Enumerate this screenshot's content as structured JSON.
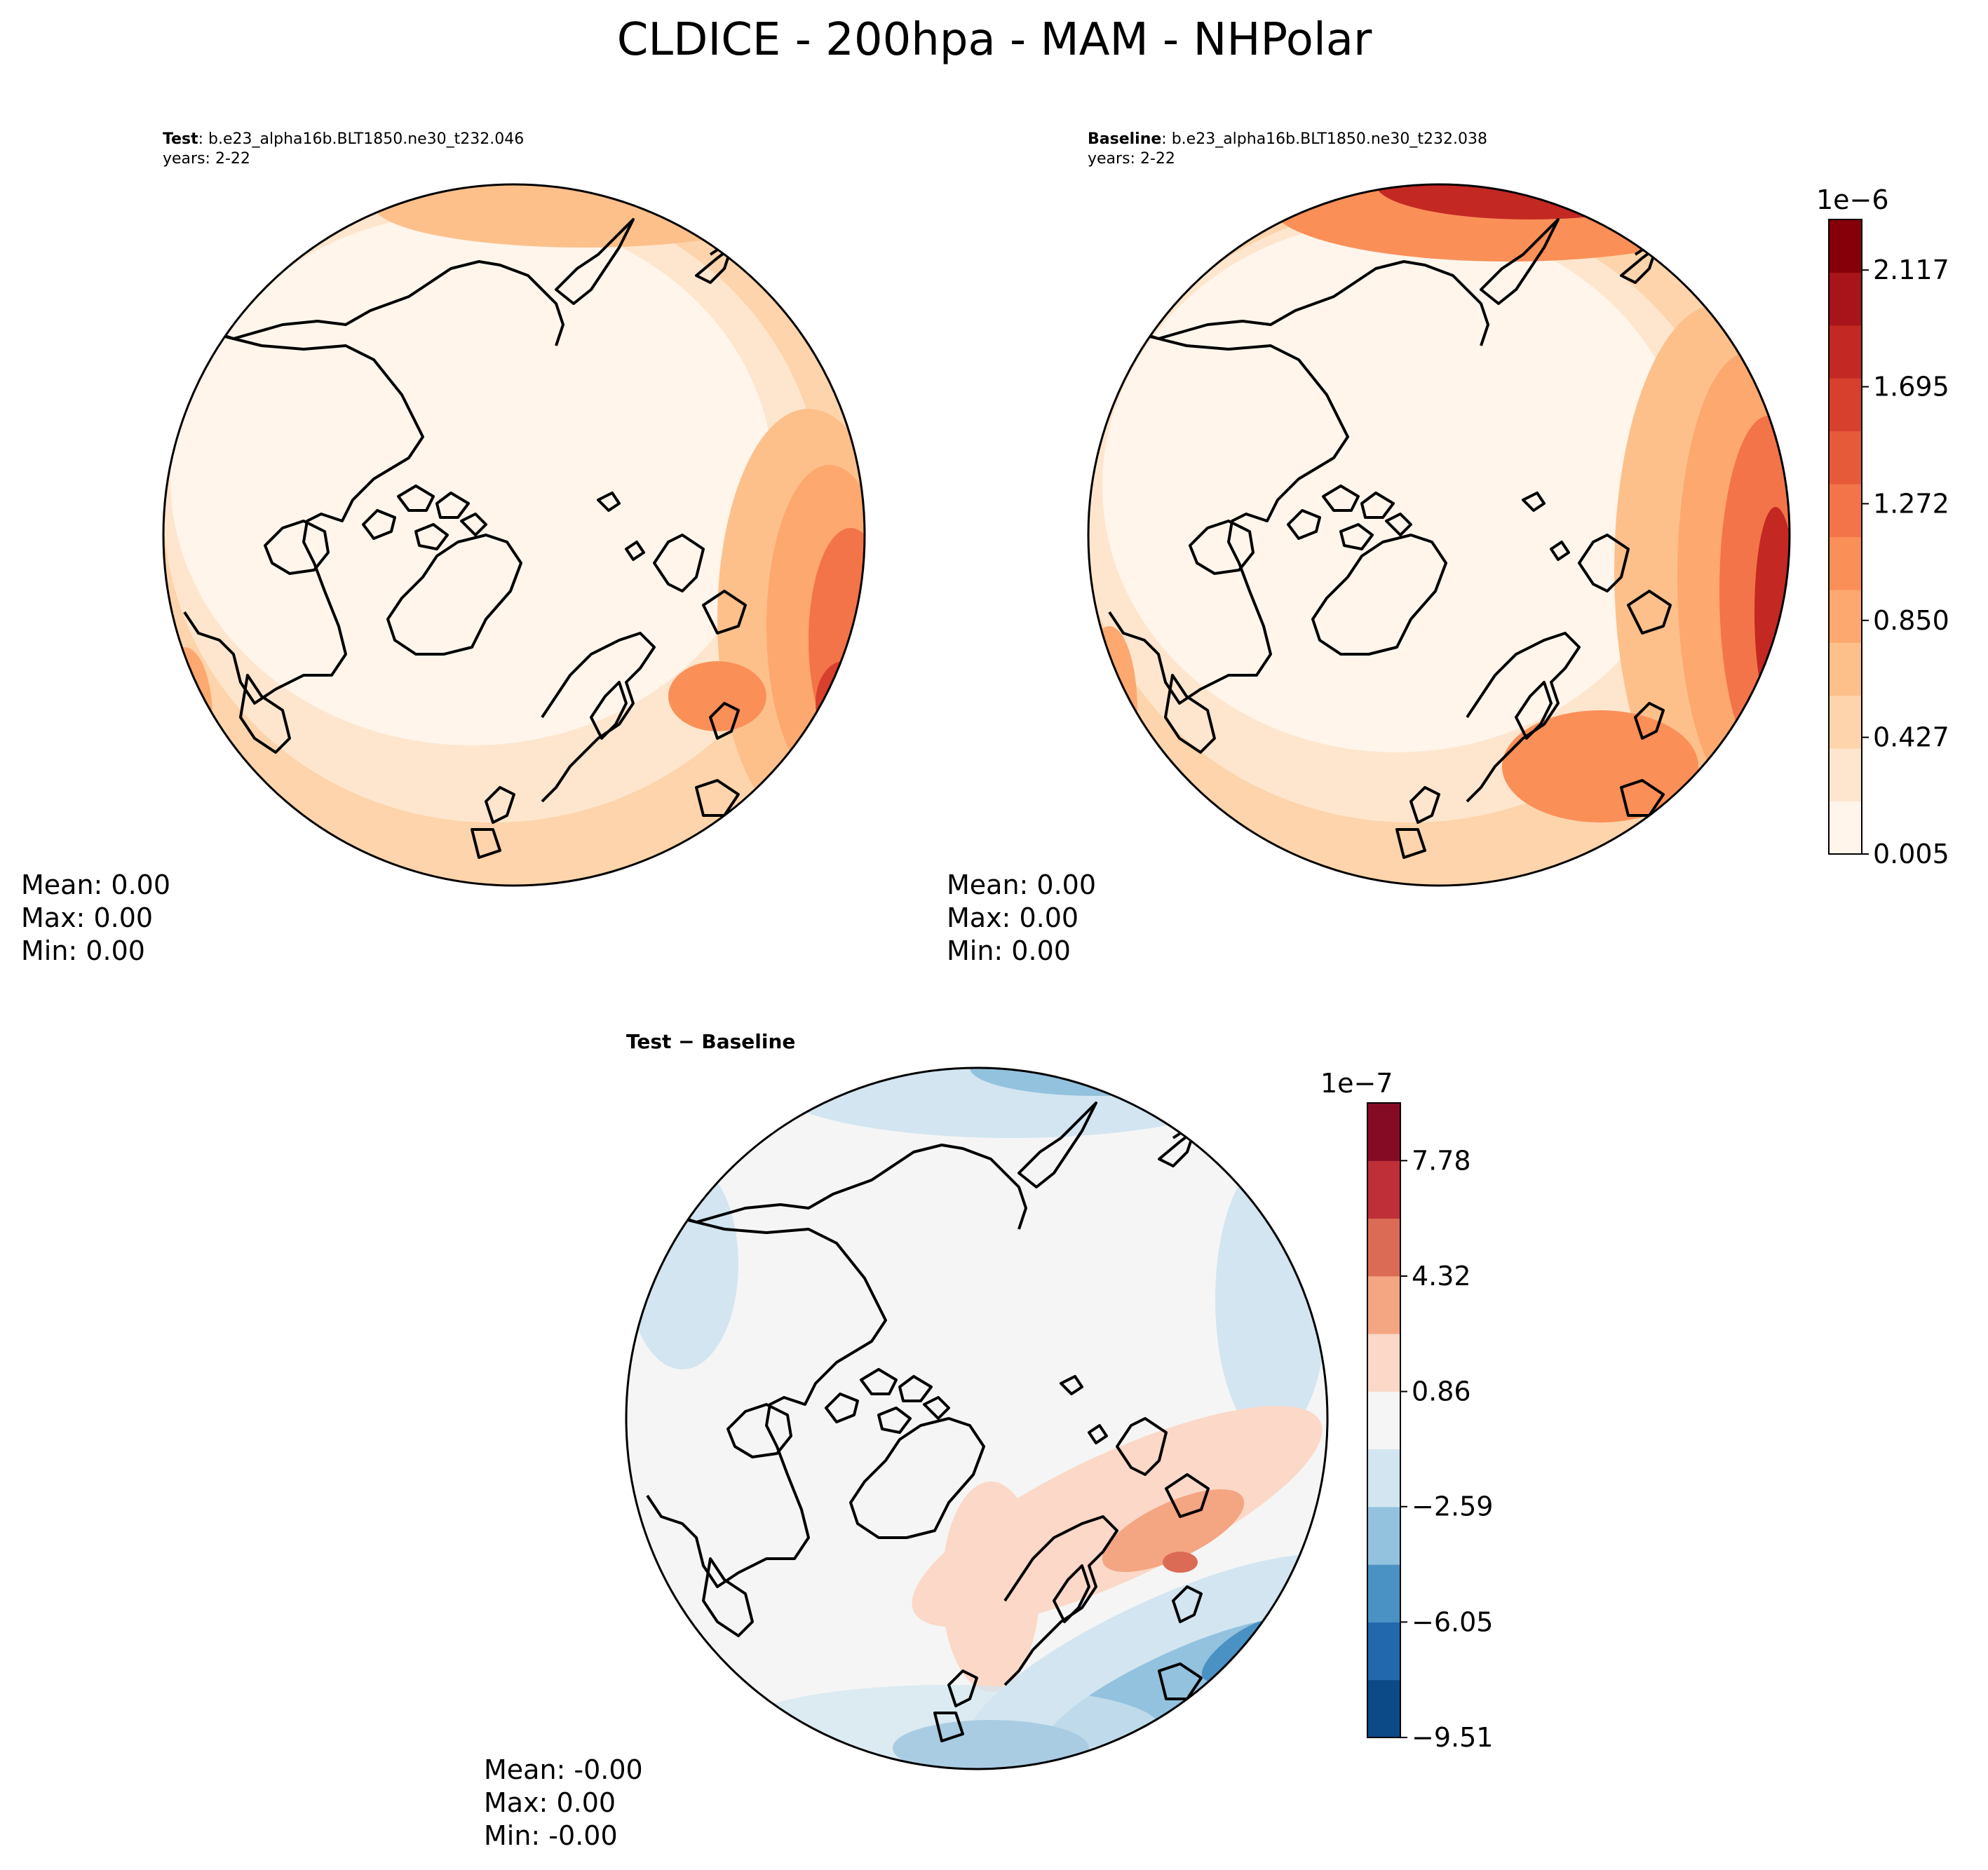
{
  "figure": {
    "title": "CLDICE - 200hpa - MAM - NHPolar"
  },
  "panels": [
    {
      "id": "test",
      "label_bold": "Test",
      "label_rest": ": b.e23_alpha16b.BLT1850.ne30_t232.046",
      "years": "years: 2-22",
      "stats": {
        "mean": "Mean:  0.00",
        "max": "Max:  0.00",
        "min": "Min:  0.00"
      },
      "palette": "sequential"
    },
    {
      "id": "baseline",
      "label_bold": "Baseline",
      "label_rest": ": b.e23_alpha16b.BLT1850.ne30_t232.038",
      "years": "years: 2-22",
      "stats": {
        "mean": "Mean:  0.00",
        "max": "Max:  0.00",
        "min": "Min:  0.00"
      },
      "palette": "sequential"
    },
    {
      "id": "diff",
      "label_bold": "Test − Baseline",
      "label_rest": "",
      "years": "",
      "stats": {
        "mean": "Mean: -0.00",
        "max": "Max:  0.00",
        "min": "Min: -0.00"
      },
      "palette": "diverging"
    }
  ],
  "colorbars": {
    "sequential": {
      "exponent": "1e−6",
      "ticks": [
        "0.005",
        "0.427",
        "0.850",
        "1.272",
        "1.695",
        "2.117"
      ],
      "tick_values": [
        0.005,
        0.427,
        0.85,
        1.272,
        1.695,
        2.117
      ],
      "range": [
        0.005,
        2.3
      ],
      "colors": [
        "#fff5eb",
        "#fee6ce",
        "#fdd4ab",
        "#fdc08b",
        "#fda86e",
        "#fb8f58",
        "#f37448",
        "#e65a3a",
        "#d8402e",
        "#c32823",
        "#a8141a",
        "#850008"
      ]
    },
    "diverging": {
      "exponent": "1e−7",
      "ticks": [
        "−9.51",
        "−6.05",
        "−2.59",
        "0.86",
        "4.32",
        "7.78"
      ],
      "tick_values": [
        -9.51,
        -6.05,
        -2.59,
        0.86,
        4.32,
        7.78
      ],
      "range": [
        -9.51,
        9.51
      ],
      "colors": [
        "#0b4a87",
        "#2268ad",
        "#4a91c4",
        "#93c2de",
        "#d2e5f1",
        "#f5f5f5",
        "#fbd8c7",
        "#f4a582",
        "#db6b55",
        "#bf2f37",
        "#850b24"
      ]
    }
  }
}
